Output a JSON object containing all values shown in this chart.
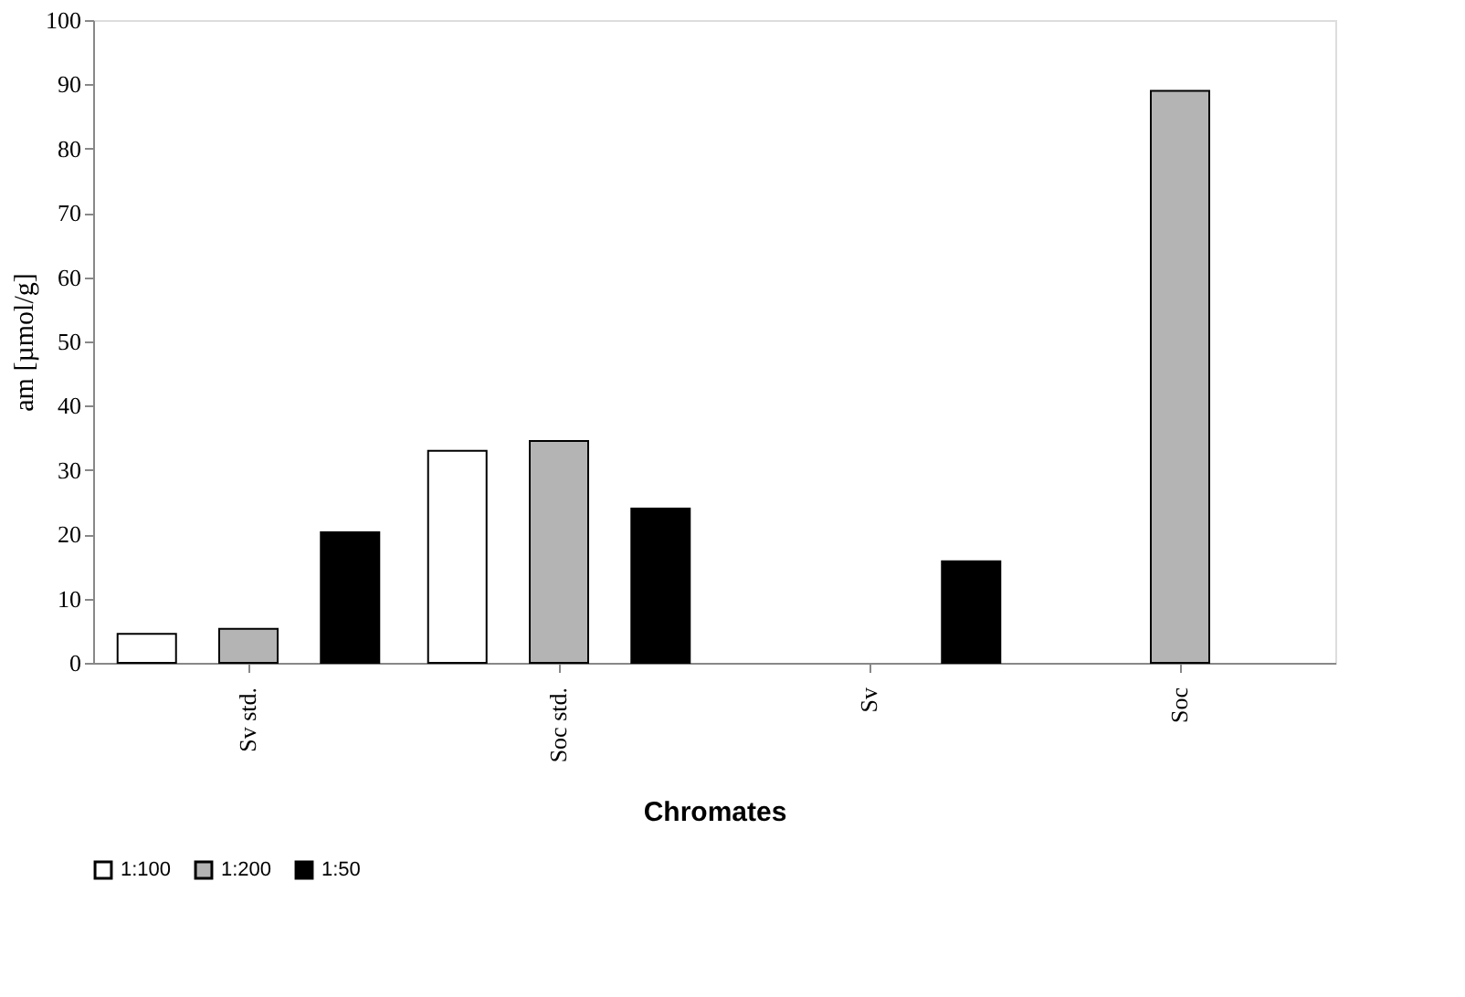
{
  "chart_data": {
    "type": "bar",
    "xlabel": "Chromates",
    "ylabel": "am [µmol/g]",
    "categories": [
      "Sv std.",
      "Soc std.",
      "Sv",
      "Soc"
    ],
    "series": [
      {
        "name": "1:100",
        "color": "#ffffff",
        "values": [
          4.5,
          33,
          null,
          null
        ]
      },
      {
        "name": "1:200",
        "color": "#b4b4b4",
        "values": [
          5.3,
          34.5,
          null,
          89
        ]
      },
      {
        "name": "1:50",
        "color": "#000000",
        "values": [
          20.3,
          24,
          15.8,
          null
        ]
      }
    ],
    "ylim": [
      0,
      100
    ],
    "yticks": [
      0,
      10,
      20,
      30,
      40,
      50,
      60,
      70,
      80,
      90,
      100
    ],
    "grid": false,
    "legend": "bottom"
  }
}
